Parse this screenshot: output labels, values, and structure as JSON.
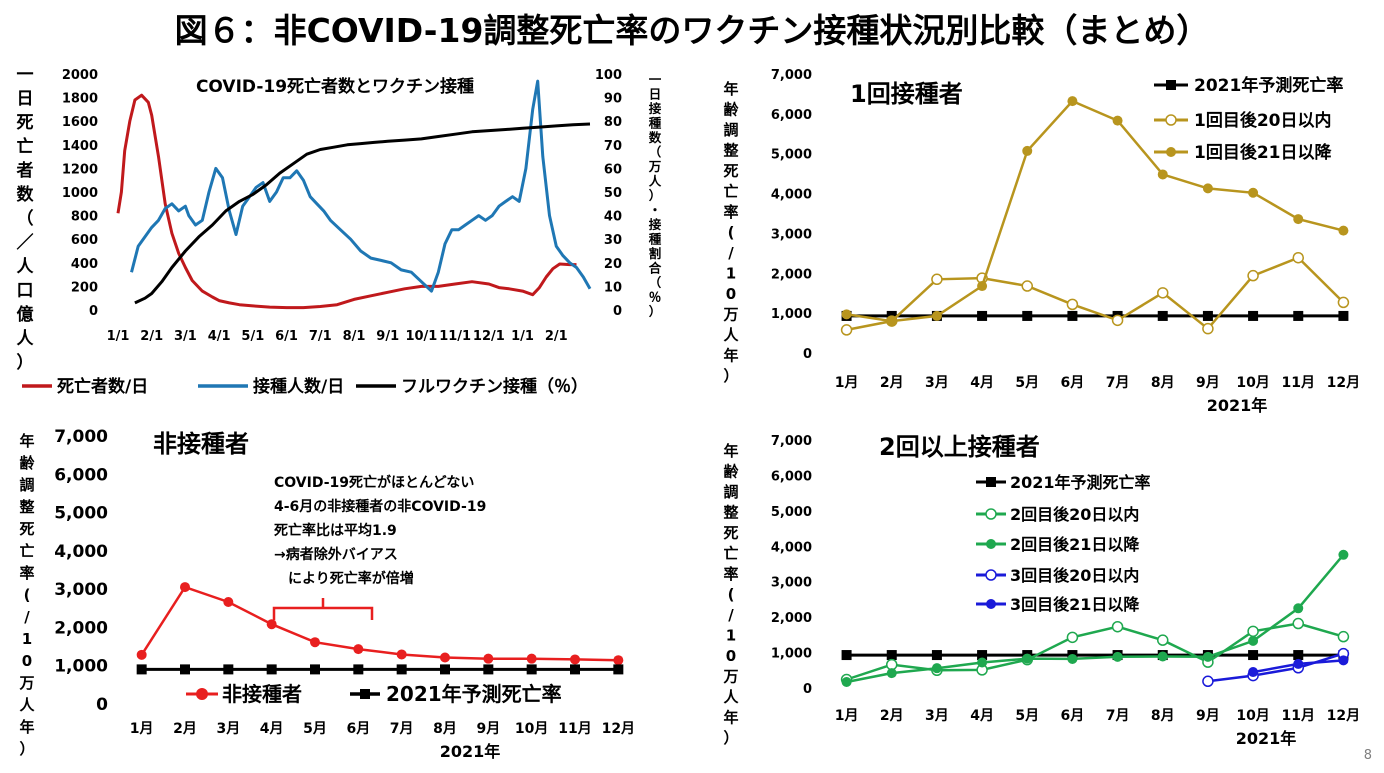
{
  "title": "図６：非COVID-19調整死亡率のワクチン接種状況別比較（まとめ）",
  "page_number": "8",
  "chart_data": [
    {
      "type": "line",
      "title": "COVID-19死亡者数とワクチン接種",
      "ylabel_left": "一日死亡者数（／人口億人）",
      "ylabel_right": "一日接種数（万人）・接種割合（％）",
      "x_ticks": [
        "1/1",
        "2/1",
        "3/1",
        "4/1",
        "5/1",
        "6/1",
        "7/1",
        "8/1",
        "9/1",
        "10/1",
        "11/1",
        "12/1",
        "1/1",
        "2/1"
      ],
      "y_left_ticks": [
        "0",
        "200",
        "400",
        "600",
        "800",
        "1000",
        "1200",
        "1400",
        "1600",
        "1800",
        "2000"
      ],
      "y_right_ticks": [
        "0",
        "10",
        "20",
        "30",
        "40",
        "50",
        "60",
        "70",
        "80",
        "90",
        "100"
      ],
      "ylim_left": [
        0,
        2000
      ],
      "ylim_right": [
        0,
        100
      ],
      "x_unit": "months since 2021-01-01",
      "series": [
        {
          "name": "死亡者数/日",
          "color": "#c0191c",
          "axis": "left",
          "points": [
            [
              0,
              820
            ],
            [
              0.1,
              1000
            ],
            [
              0.2,
              1350
            ],
            [
              0.35,
              1600
            ],
            [
              0.5,
              1780
            ],
            [
              0.7,
              1820
            ],
            [
              0.9,
              1760
            ],
            [
              1.0,
              1650
            ],
            [
              1.2,
              1300
            ],
            [
              1.4,
              900
            ],
            [
              1.6,
              650
            ],
            [
              1.8,
              480
            ],
            [
              2.0,
              360
            ],
            [
              2.2,
              250
            ],
            [
              2.5,
              160
            ],
            [
              2.8,
              110
            ],
            [
              3.0,
              80
            ],
            [
              3.3,
              60
            ],
            [
              3.6,
              45
            ],
            [
              4.0,
              35
            ],
            [
              4.5,
              25
            ],
            [
              5.0,
              20
            ],
            [
              5.5,
              20
            ],
            [
              6.0,
              30
            ],
            [
              6.5,
              45
            ],
            [
              7.0,
              90
            ],
            [
              7.5,
              120
            ],
            [
              8.0,
              150
            ],
            [
              8.5,
              180
            ],
            [
              9.0,
              200
            ],
            [
              9.5,
              200
            ],
            [
              10.0,
              220
            ],
            [
              10.5,
              240
            ],
            [
              11.0,
              220
            ],
            [
              11.3,
              190
            ],
            [
              11.6,
              180
            ],
            [
              12.0,
              160
            ],
            [
              12.3,
              130
            ],
            [
              12.5,
              190
            ],
            [
              12.7,
              280
            ],
            [
              12.9,
              350
            ],
            [
              13.1,
              390
            ],
            [
              13.4,
              385
            ],
            [
              13.6,
              385
            ]
          ]
        },
        {
          "name": "接種人数/日",
          "color": "#1f77b4",
          "axis": "right",
          "points": [
            [
              0.4,
              16
            ],
            [
              0.6,
              27
            ],
            [
              0.8,
              31
            ],
            [
              1.0,
              35
            ],
            [
              1.2,
              38
            ],
            [
              1.4,
              43
            ],
            [
              1.6,
              45
            ],
            [
              1.8,
              42
            ],
            [
              2.0,
              44
            ],
            [
              2.1,
              40
            ],
            [
              2.3,
              36
            ],
            [
              2.5,
              38
            ],
            [
              2.7,
              50
            ],
            [
              2.9,
              60
            ],
            [
              3.1,
              56
            ],
            [
              3.3,
              42
            ],
            [
              3.5,
              32
            ],
            [
              3.7,
              44
            ],
            [
              3.9,
              48
            ],
            [
              4.1,
              52
            ],
            [
              4.3,
              54
            ],
            [
              4.5,
              46
            ],
            [
              4.7,
              50
            ],
            [
              4.9,
              56
            ],
            [
              5.1,
              56
            ],
            [
              5.3,
              59
            ],
            [
              5.5,
              55
            ],
            [
              5.7,
              48
            ],
            [
              5.9,
              45
            ],
            [
              6.1,
              42
            ],
            [
              6.3,
              38
            ],
            [
              6.6,
              34
            ],
            [
              6.9,
              30
            ],
            [
              7.2,
              25
            ],
            [
              7.5,
              22
            ],
            [
              7.8,
              21
            ],
            [
              8.1,
              20
            ],
            [
              8.4,
              17
            ],
            [
              8.7,
              16
            ],
            [
              9.0,
              12
            ],
            [
              9.3,
              8
            ],
            [
              9.5,
              16
            ],
            [
              9.7,
              28
            ],
            [
              9.9,
              34
            ],
            [
              10.1,
              34
            ],
            [
              10.3,
              36
            ],
            [
              10.5,
              38
            ],
            [
              10.7,
              40
            ],
            [
              10.9,
              38
            ],
            [
              11.1,
              40
            ],
            [
              11.3,
              44
            ],
            [
              11.5,
              46
            ],
            [
              11.7,
              48
            ],
            [
              11.9,
              46
            ],
            [
              12.1,
              60
            ],
            [
              12.3,
              85
            ],
            [
              12.45,
              97
            ],
            [
              12.6,
              65
            ],
            [
              12.8,
              40
            ],
            [
              13.0,
              27
            ],
            [
              13.2,
              23
            ],
            [
              13.4,
              20
            ],
            [
              13.6,
              18
            ],
            [
              13.8,
              14
            ],
            [
              14.0,
              9
            ]
          ]
        },
        {
          "name": "フルワクチン接種（％）",
          "color": "#000000",
          "axis": "right",
          "points": [
            [
              0.5,
              3
            ],
            [
              0.8,
              5
            ],
            [
              1.0,
              7
            ],
            [
              1.3,
              12
            ],
            [
              1.6,
              18
            ],
            [
              2.0,
              25
            ],
            [
              2.4,
              31
            ],
            [
              2.8,
              36
            ],
            [
              3.2,
              42
            ],
            [
              3.6,
              46
            ],
            [
              4.0,
              49
            ],
            [
              4.4,
              53
            ],
            [
              4.8,
              58
            ],
            [
              5.2,
              62
            ],
            [
              5.6,
              66
            ],
            [
              6.0,
              68
            ],
            [
              6.4,
              69
            ],
            [
              6.8,
              70
            ],
            [
              7.2,
              70.5
            ],
            [
              7.6,
              71
            ],
            [
              8.0,
              71.5
            ],
            [
              8.5,
              72
            ],
            [
              9.0,
              72.5
            ],
            [
              9.5,
              73.5
            ],
            [
              10.0,
              74.5
            ],
            [
              10.5,
              75.5
            ],
            [
              11.0,
              76
            ],
            [
              11.5,
              76.5
            ],
            [
              12.0,
              77
            ],
            [
              12.5,
              77.5
            ],
            [
              13.0,
              78
            ],
            [
              13.5,
              78.5
            ],
            [
              14.0,
              78.8
            ]
          ]
        }
      ],
      "legend": [
        "死亡者数/日",
        "接種人数/日",
        "フルワクチン接種（％）"
      ],
      "legend_position": "bottom"
    },
    {
      "type": "line",
      "title": "1回接種者",
      "ylabel": "年齢調整死亡率(/10万人年）",
      "xlabel": "2021年",
      "categories": [
        "1月",
        "2月",
        "3月",
        "4月",
        "5月",
        "6月",
        "7月",
        "8月",
        "9月",
        "10月",
        "11月",
        "12月"
      ],
      "y_ticks": [
        "0",
        "1,000",
        "2,000",
        "3,000",
        "4,000",
        "5,000",
        "6,000",
        "7,000"
      ],
      "ylim": [
        0,
        7000
      ],
      "series": [
        {
          "name": "2021年予測死亡率",
          "color": "#000000",
          "marker": "square",
          "values": [
            930,
            930,
            930,
            930,
            930,
            930,
            930,
            930,
            930,
            930,
            930,
            930
          ]
        },
        {
          "name": "1回目後20日以内",
          "color": "#b8951e",
          "marker": "open-circle",
          "values": [
            580,
            800,
            1850,
            1880,
            1680,
            1220,
            820,
            1510,
            610,
            1940,
            2390,
            1270
          ]
        },
        {
          "name": "1回目後21日以降",
          "color": "#b8951e",
          "marker": "filled-circle",
          "values": [
            970,
            800,
            930,
            1680,
            5070,
            6320,
            5830,
            4480,
            4130,
            4020,
            3360,
            3070
          ]
        }
      ],
      "legend_position": "top-right"
    },
    {
      "type": "line",
      "title": "非接種者",
      "ylabel": "年齢調整死亡率(/10万人年）",
      "xlabel": "2021年",
      "categories": [
        "1月",
        "2月",
        "3月",
        "4月",
        "5月",
        "6月",
        "7月",
        "8月",
        "9月",
        "10月",
        "11月",
        "12月"
      ],
      "y_ticks": [
        "0",
        "1,000",
        "2,000",
        "3,000",
        "4,000",
        "5,000",
        "6,000",
        "7,000"
      ],
      "ylim": [
        0,
        7000
      ],
      "series": [
        {
          "name": "非接種者",
          "color": "#e81f1f",
          "marker": "filled-circle",
          "values": [
            1310,
            3080,
            2690,
            2110,
            1640,
            1460,
            1320,
            1240,
            1210,
            1210,
            1190,
            1170
          ]
        },
        {
          "name": "2021年予測死亡率",
          "color": "#000000",
          "marker": "square",
          "values": [
            930,
            930,
            930,
            930,
            930,
            930,
            930,
            930,
            930,
            930,
            930,
            930
          ]
        }
      ],
      "annotation": [
        "COVID-19死亡がほとんどない",
        "4-6月の非接種者の非COVID-19",
        "死亡率比は平均1.9",
        "→病者除外バイアス",
        "　により死亡率が倍増"
      ],
      "legend_position": "bottom"
    },
    {
      "type": "line",
      "title": "2回以上接種者",
      "ylabel": "年齢調整死亡率(/10万人年）",
      "xlabel": "2021年",
      "categories": [
        "1月",
        "2月",
        "3月",
        "4月",
        "5月",
        "6月",
        "7月",
        "8月",
        "9月",
        "10月",
        "11月",
        "12月"
      ],
      "y_ticks": [
        "0",
        "1,000",
        "2,000",
        "3,000",
        "4,000",
        "5,000",
        "6,000",
        "7,000"
      ],
      "ylim": [
        0,
        7000
      ],
      "series": [
        {
          "name": "2021年予測死亡率",
          "color": "#000000",
          "marker": "square",
          "values": [
            930,
            930,
            930,
            930,
            930,
            930,
            930,
            930,
            930,
            930,
            930,
            930
          ]
        },
        {
          "name": "2回目後20日以内",
          "color": "#1fa84f",
          "marker": "open-circle",
          "values": [
            240,
            660,
            500,
            510,
            800,
            1430,
            1730,
            1350,
            730,
            1600,
            1820,
            1450
          ]
        },
        {
          "name": "2回目後21日以降",
          "color": "#1fa84f",
          "marker": "filled-circle",
          "values": [
            170,
            420,
            560,
            720,
            830,
            820,
            880,
            890,
            880,
            1330,
            2250,
            3760
          ]
        },
        {
          "name": "3回目後20日以内",
          "color": "#1a1ad9",
          "marker": "open-circle",
          "values": [
            null,
            null,
            null,
            null,
            null,
            null,
            null,
            null,
            190,
            350,
            570,
            970
          ]
        },
        {
          "name": "3回目後21日以降",
          "color": "#1a1ad9",
          "marker": "filled-circle",
          "values": [
            null,
            null,
            null,
            null,
            null,
            null,
            null,
            null,
            null,
            450,
            680,
            780
          ]
        }
      ],
      "legend_position": "top-center"
    }
  ]
}
